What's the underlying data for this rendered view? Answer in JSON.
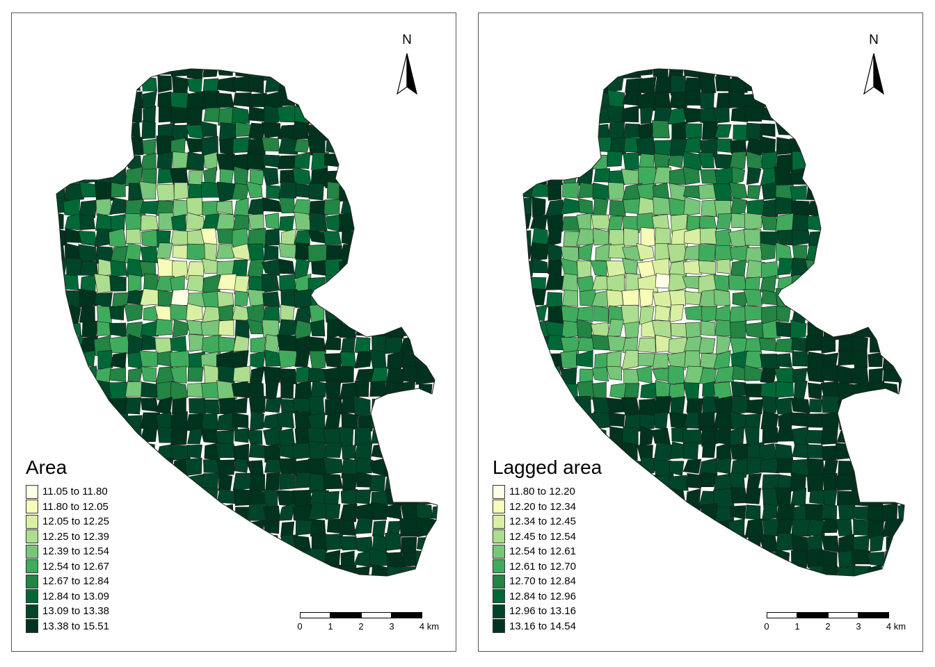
{
  "maps": [
    {
      "legend_title": "Area",
      "legend": [
        {
          "label": "11.05 to 11.80",
          "color": "#ffffe5"
        },
        {
          "label": "11.80 to 12.05",
          "color": "#f7fcb9"
        },
        {
          "label": "12.05 to 12.25",
          "color": "#d9f0a3"
        },
        {
          "label": "12.25 to 12.39",
          "color": "#addd8e"
        },
        {
          "label": "12.39 to 12.54",
          "color": "#78c679"
        },
        {
          "label": "12.54 to 12.67",
          "color": "#41ab5d"
        },
        {
          "label": "12.67 to 12.84",
          "color": "#238443"
        },
        {
          "label": "12.84 to 13.09",
          "color": "#006837"
        },
        {
          "label": "13.09 to 13.38",
          "color": "#004529"
        },
        {
          "label": "13.38 to 15.51",
          "color": "#00331e"
        }
      ],
      "north_label": "N",
      "scale_ticks": [
        "0",
        "1",
        "2",
        "3",
        "4 km"
      ]
    },
    {
      "legend_title": "Lagged area",
      "legend": [
        {
          "label": "11.80 to 12.20",
          "color": "#ffffe5"
        },
        {
          "label": "12.20 to 12.34",
          "color": "#f7fcb9"
        },
        {
          "label": "12.34 to 12.45",
          "color": "#d9f0a3"
        },
        {
          "label": "12.45 to 12.54",
          "color": "#addd8e"
        },
        {
          "label": "12.54 to 12.61",
          "color": "#78c679"
        },
        {
          "label": "12.61 to 12.70",
          "color": "#41ab5d"
        },
        {
          "label": "12.70 to 12.84",
          "color": "#238443"
        },
        {
          "label": "12.84 to 12.96",
          "color": "#006837"
        },
        {
          "label": "12.96 to 13.16",
          "color": "#004529"
        },
        {
          "label": "13.16 to 14.54",
          "color": "#00331e"
        }
      ],
      "north_label": "N",
      "scale_ticks": [
        "0",
        "1",
        "2",
        "3",
        "4 km"
      ]
    }
  ]
}
